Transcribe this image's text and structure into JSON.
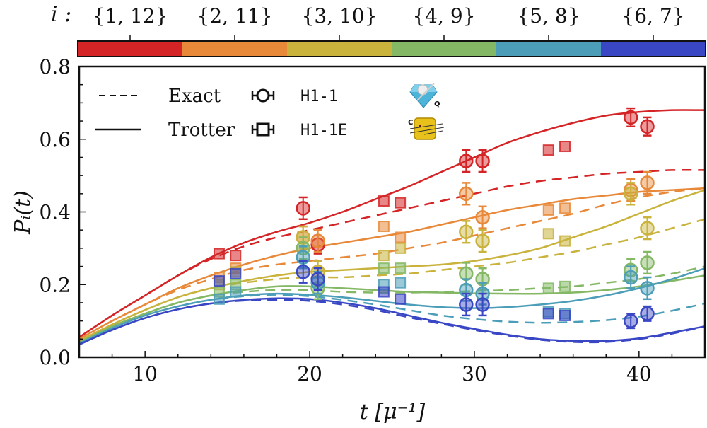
{
  "chart_data": {
    "type": "line",
    "title": "",
    "xlabel": "t [μ⁻¹]",
    "ylabel": "Pᵢ(t)",
    "xlim": [
      6,
      44
    ],
    "ylim": [
      0.0,
      0.8
    ],
    "xticks": [
      10,
      20,
      30,
      40
    ],
    "xtick_labels": [
      "10",
      "20",
      "30",
      "40"
    ],
    "yticks": [
      0.0,
      0.2,
      0.4,
      0.6,
      0.8
    ],
    "ytick_labels": [
      "0.0",
      "0.2",
      "0.4",
      "0.6",
      "0.8"
    ],
    "grid": false,
    "colorbar": {
      "label": "i :",
      "categories": [
        "{1, 12}",
        "{2, 11}",
        "{3, 10}",
        "{4, 9}",
        "{5, 8}",
        "{6, 7}"
      ],
      "colors": [
        "#d42426",
        "#e8893a",
        "#c9b33d",
        "#84b864",
        "#4b9db8",
        "#3a47c4"
      ]
    },
    "legend": {
      "position": "top-left",
      "entries": [
        {
          "label": "Exact",
          "style": "dashed"
        },
        {
          "label": "Trotter",
          "style": "solid"
        },
        {
          "label": "H1-1",
          "marker": "circle",
          "icon": "diamond-pearl-icon",
          "icon_subscript": "Q"
        },
        {
          "label": "H1-1E",
          "marker": "square",
          "icon": "yellow-chip-icon",
          "icon_superscript": "C"
        }
      ]
    },
    "t_grid": [
      6,
      8,
      10,
      12,
      14,
      16,
      18,
      20,
      22,
      24,
      26,
      28,
      30,
      32,
      34,
      36,
      38,
      40,
      42,
      44
    ],
    "series": [
      {
        "name": "{1, 12}",
        "color": "#d42426",
        "trotter": [
          0.055,
          0.115,
          0.17,
          0.225,
          0.275,
          0.315,
          0.345,
          0.37,
          0.4,
          0.435,
          0.47,
          0.51,
          0.55,
          0.59,
          0.62,
          0.645,
          0.665,
          0.675,
          0.68,
          0.68
        ],
        "exact": [
          0.055,
          0.115,
          0.17,
          0.225,
          0.27,
          0.305,
          0.33,
          0.35,
          0.37,
          0.39,
          0.41,
          0.43,
          0.45,
          0.47,
          0.485,
          0.495,
          0.505,
          0.51,
          0.515,
          0.515
        ],
        "h1_1": [
          [
            19.6,
            0.41,
            0.03
          ],
          [
            20.5,
            0.31,
            0.025
          ],
          [
            29.5,
            0.54,
            0.03
          ],
          [
            30.5,
            0.54,
            0.03
          ],
          [
            39.5,
            0.66,
            0.025
          ],
          [
            40.5,
            0.635,
            0.025
          ]
        ],
        "h1_1e": [
          [
            14.5,
            0.285
          ],
          [
            15.5,
            0.28
          ],
          [
            24.5,
            0.43
          ],
          [
            25.5,
            0.425
          ],
          [
            34.5,
            0.57
          ],
          [
            35.5,
            0.58
          ]
        ]
      },
      {
        "name": "{2, 11}",
        "color": "#e8893a",
        "trotter": [
          0.05,
          0.1,
          0.145,
          0.19,
          0.225,
          0.255,
          0.28,
          0.3,
          0.315,
          0.33,
          0.345,
          0.365,
          0.385,
          0.405,
          0.42,
          0.435,
          0.445,
          0.455,
          0.46,
          0.465
        ],
        "exact": [
          0.05,
          0.1,
          0.145,
          0.185,
          0.215,
          0.24,
          0.255,
          0.265,
          0.275,
          0.285,
          0.3,
          0.315,
          0.335,
          0.355,
          0.375,
          0.395,
          0.42,
          0.44,
          0.455,
          0.465
        ],
        "h1_1": [
          [
            19.6,
            0.33,
            0.03
          ],
          [
            20.5,
            0.32,
            0.03
          ],
          [
            29.5,
            0.45,
            0.03
          ],
          [
            30.5,
            0.385,
            0.03
          ],
          [
            39.5,
            0.46,
            0.03
          ],
          [
            40.5,
            0.48,
            0.03
          ]
        ],
        "h1_1e": [
          [
            14.5,
            0.22
          ],
          [
            15.5,
            0.245
          ],
          [
            24.5,
            0.36
          ],
          [
            25.5,
            0.33
          ],
          [
            34.5,
            0.405
          ],
          [
            35.5,
            0.41
          ]
        ]
      },
      {
        "name": "{3, 10}",
        "color": "#c9b33d",
        "trotter": [
          0.045,
          0.09,
          0.13,
          0.165,
          0.19,
          0.21,
          0.225,
          0.235,
          0.24,
          0.245,
          0.25,
          0.255,
          0.265,
          0.28,
          0.3,
          0.33,
          0.36,
          0.395,
          0.43,
          0.46
        ],
        "exact": [
          0.045,
          0.09,
          0.13,
          0.165,
          0.19,
          0.205,
          0.215,
          0.22,
          0.22,
          0.225,
          0.23,
          0.24,
          0.25,
          0.26,
          0.275,
          0.29,
          0.31,
          0.33,
          0.355,
          0.38
        ],
        "h1_1": [
          [
            19.6,
            0.33,
            0.03
          ],
          [
            20.5,
            0.235,
            0.03
          ],
          [
            29.5,
            0.345,
            0.03
          ],
          [
            30.5,
            0.32,
            0.03
          ],
          [
            39.5,
            0.45,
            0.03
          ],
          [
            40.5,
            0.355,
            0.03
          ]
        ],
        "h1_1e": [
          [
            14.5,
            0.2
          ],
          [
            15.5,
            0.235
          ],
          [
            24.5,
            0.28
          ],
          [
            25.5,
            0.3
          ],
          [
            34.5,
            0.34
          ],
          [
            35.5,
            0.32
          ]
        ]
      },
      {
        "name": "{4, 9}",
        "color": "#84b864",
        "trotter": [
          0.04,
          0.085,
          0.12,
          0.15,
          0.17,
          0.185,
          0.195,
          0.195,
          0.19,
          0.185,
          0.18,
          0.178,
          0.176,
          0.175,
          0.175,
          0.178,
          0.185,
          0.195,
          0.21,
          0.225
        ],
        "exact": [
          0.04,
          0.085,
          0.12,
          0.15,
          0.17,
          0.18,
          0.185,
          0.185,
          0.18,
          0.178,
          0.178,
          0.18,
          0.182,
          0.185,
          0.19,
          0.195,
          0.205,
          0.215,
          0.23,
          0.25
        ],
        "h1_1": [
          [
            19.6,
            0.3,
            0.03
          ],
          [
            20.5,
            0.19,
            0.03
          ],
          [
            29.5,
            0.23,
            0.03
          ],
          [
            30.5,
            0.215,
            0.03
          ],
          [
            39.5,
            0.24,
            0.03
          ],
          [
            40.5,
            0.26,
            0.03
          ]
        ],
        "h1_1e": [
          [
            14.5,
            0.18
          ],
          [
            15.5,
            0.2
          ],
          [
            24.5,
            0.245
          ],
          [
            25.5,
            0.245
          ],
          [
            34.5,
            0.19
          ],
          [
            35.5,
            0.195
          ]
        ]
      },
      {
        "name": "{5, 8}",
        "color": "#4b9db8",
        "trotter": [
          0.038,
          0.08,
          0.115,
          0.14,
          0.158,
          0.17,
          0.175,
          0.172,
          0.165,
          0.155,
          0.145,
          0.138,
          0.135,
          0.138,
          0.145,
          0.155,
          0.17,
          0.19,
          0.215,
          0.245
        ],
        "exact": [
          0.038,
          0.08,
          0.115,
          0.14,
          0.158,
          0.168,
          0.172,
          0.168,
          0.158,
          0.145,
          0.13,
          0.115,
          0.105,
          0.098,
          0.095,
          0.097,
          0.102,
          0.112,
          0.128,
          0.148
        ],
        "h1_1": [
          [
            19.6,
            0.275,
            0.03
          ],
          [
            20.5,
            0.205,
            0.03
          ],
          [
            29.5,
            0.185,
            0.03
          ],
          [
            30.5,
            0.175,
            0.03
          ],
          [
            39.5,
            0.22,
            0.03
          ],
          [
            40.5,
            0.19,
            0.03
          ]
        ],
        "h1_1e": [
          [
            14.5,
            0.16
          ],
          [
            15.5,
            0.18
          ],
          [
            24.5,
            0.2
          ],
          [
            25.5,
            0.205
          ],
          [
            34.5,
            0.125
          ],
          [
            35.5,
            0.12
          ]
        ]
      },
      {
        "name": "{6, 7}",
        "color": "#3a47c4",
        "trotter": [
          0.035,
          0.075,
          0.108,
          0.132,
          0.148,
          0.158,
          0.162,
          0.16,
          0.15,
          0.135,
          0.115,
          0.095,
          0.078,
          0.062,
          0.05,
          0.045,
          0.045,
          0.052,
          0.068,
          0.085
        ],
        "exact": [
          0.035,
          0.075,
          0.108,
          0.132,
          0.148,
          0.156,
          0.158,
          0.155,
          0.145,
          0.13,
          0.11,
          0.092,
          0.075,
          0.06,
          0.048,
          0.042,
          0.042,
          0.05,
          0.065,
          0.085
        ],
        "h1_1": [
          [
            19.6,
            0.235,
            0.03
          ],
          [
            20.5,
            0.215,
            0.03
          ],
          [
            29.5,
            0.145,
            0.03
          ],
          [
            30.5,
            0.145,
            0.03
          ],
          [
            39.5,
            0.1,
            0.02
          ],
          [
            40.5,
            0.12,
            0.02
          ]
        ],
        "h1_1e": [
          [
            14.5,
            0.21
          ],
          [
            15.5,
            0.23
          ],
          [
            24.5,
            0.18
          ],
          [
            25.5,
            0.16
          ],
          [
            34.5,
            0.12
          ],
          [
            35.5,
            0.115
          ]
        ]
      }
    ]
  }
}
